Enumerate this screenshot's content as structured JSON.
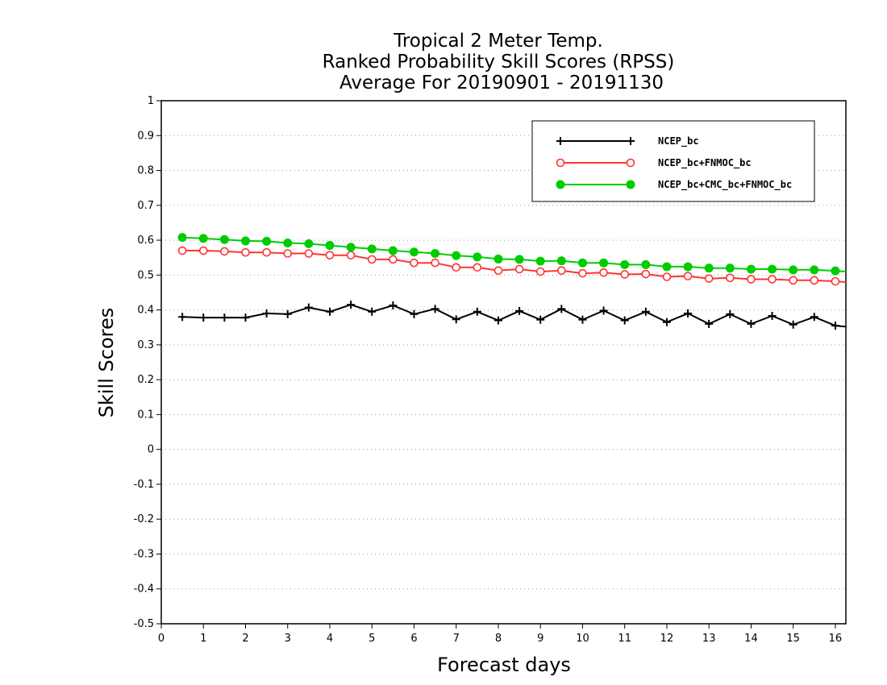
{
  "chart_data": {
    "type": "line",
    "title_lines": [
      "Tropical 2 Meter Temp.",
      "Ranked Probability Skill Scores (RPSS)",
      "Average For 20190901 - 20191130"
    ],
    "xlabel": "Forecast days",
    "ylabel": "Skill Scores",
    "xlim": [
      0,
      16.25
    ],
    "ylim": [
      -0.5,
      1
    ],
    "xticks": [
      "0",
      "1",
      "2",
      "3",
      "4",
      "5",
      "6",
      "7",
      "8",
      "9",
      "10",
      "11",
      "12",
      "13",
      "14",
      "15",
      "16"
    ],
    "yticks": [
      "-0.5",
      "-0.4",
      "-0.3",
      "-0.2",
      "-0.1",
      "0",
      "0.1",
      "0.2",
      "0.3",
      "0.4",
      "0.5",
      "0.6",
      "0.7",
      "0.8",
      "0.9",
      "1"
    ],
    "grid": "horizontal dotted",
    "legend_position": "top-right",
    "x": [
      0.5,
      1,
      1.5,
      2,
      2.5,
      3,
      3.5,
      4,
      4.5,
      5,
      5.5,
      6,
      6.5,
      7,
      7.5,
      8,
      8.5,
      9,
      9.5,
      10,
      10.5,
      11,
      11.5,
      12,
      12.5,
      13,
      13.5,
      14,
      14.5,
      15,
      15.5,
      16,
      16.25
    ],
    "series": [
      {
        "name": "NCEP_bc",
        "color": "#000000",
        "marker": "plus",
        "values": [
          0.38,
          0.378,
          0.378,
          0.378,
          0.39,
          0.388,
          0.407,
          0.395,
          0.415,
          0.395,
          0.413,
          0.388,
          0.403,
          0.373,
          0.395,
          0.37,
          0.397,
          0.372,
          0.403,
          0.372,
          0.398,
          0.37,
          0.395,
          0.365,
          0.39,
          0.36,
          0.388,
          0.36,
          0.383,
          0.358,
          0.38,
          0.355,
          0.352
        ]
      },
      {
        "name": "NCEP_bc+FNMOC_bc",
        "color": "#ff3333",
        "marker": "open-circle",
        "values": [
          0.57,
          0.57,
          0.568,
          0.565,
          0.565,
          0.562,
          0.562,
          0.557,
          0.557,
          0.545,
          0.545,
          0.535,
          0.535,
          0.522,
          0.522,
          0.513,
          0.517,
          0.51,
          0.513,
          0.505,
          0.507,
          0.502,
          0.503,
          0.495,
          0.497,
          0.49,
          0.492,
          0.488,
          0.488,
          0.485,
          0.485,
          0.482,
          0.48
        ]
      },
      {
        "name": "NCEP_bc+CMC_bc+FNMOC_bc",
        "color": "#00cc00",
        "marker": "filled-circle",
        "values": [
          0.608,
          0.605,
          0.602,
          0.598,
          0.597,
          0.592,
          0.59,
          0.585,
          0.58,
          0.575,
          0.57,
          0.566,
          0.562,
          0.556,
          0.552,
          0.546,
          0.545,
          0.54,
          0.541,
          0.535,
          0.535,
          0.53,
          0.53,
          0.524,
          0.524,
          0.52,
          0.52,
          0.517,
          0.517,
          0.515,
          0.515,
          0.512,
          0.51
        ]
      }
    ]
  }
}
